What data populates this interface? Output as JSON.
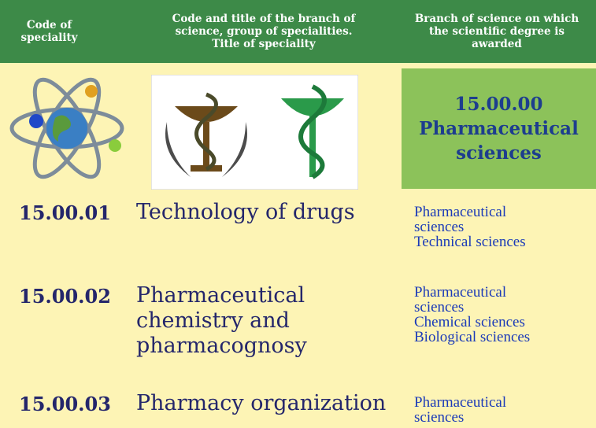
{
  "header": {
    "columns": [
      "Code of speciality",
      "Code and title of the branch of science, group of specialities. Title of speciality",
      "Branch of science on which the scientific degree is awarded"
    ]
  },
  "branch": {
    "code": "15.00.00",
    "title": "Pharmaceutical sciences"
  },
  "rows": [
    {
      "code": "15.00.01",
      "title": "Technology of drugs",
      "degrees": [
        "Pharmaceutical sciences",
        "Technical sciences"
      ]
    },
    {
      "code": "15.00.02",
      "title": "Pharmaceutical chemistry and pharmacognosy",
      "degrees": [
        "Pharmaceutical sciences",
        "Chemical sciences",
        "Biological sciences"
      ]
    },
    {
      "code": "15.00.03",
      "title": "Pharmacy organization",
      "degrees": [
        "Pharmaceutical sciences"
      ]
    }
  ]
}
